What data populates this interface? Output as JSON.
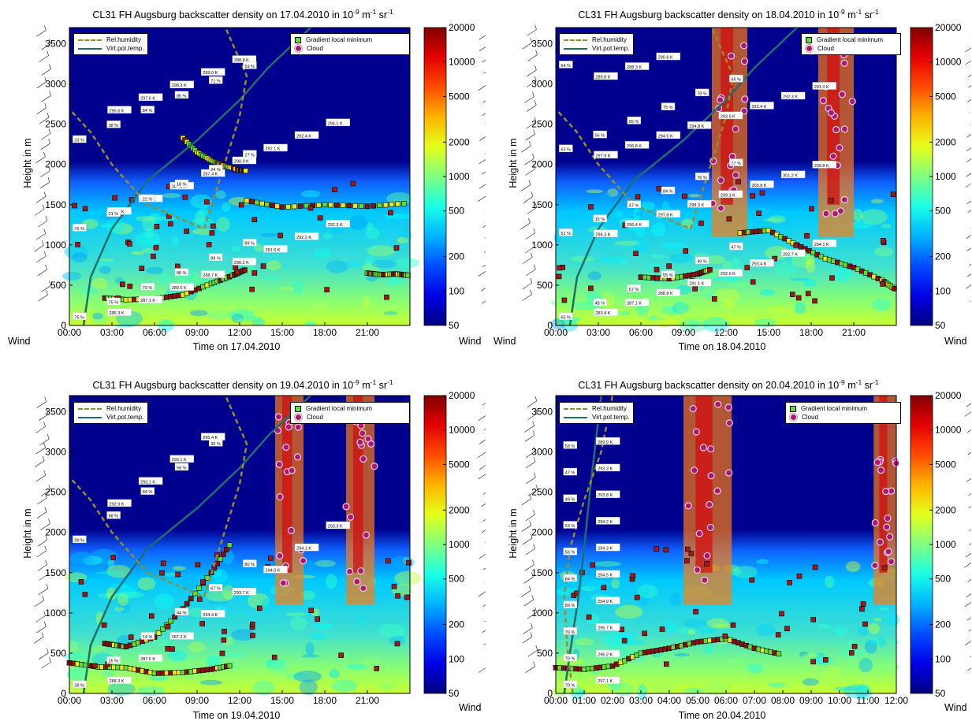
{
  "colorbar_ticks": [
    "20000",
    "10000",
    "5000",
    "2000",
    "1000",
    "500",
    "200",
    "100",
    "50"
  ],
  "colorbar_values": [
    20000,
    10000,
    5000,
    2000,
    1000,
    500,
    200,
    100,
    50
  ],
  "wind_label": "Wind",
  "legend": {
    "rh": "Rel.humidity",
    "vpt": "Virt.pot.temp.",
    "grad": "Gradient local minimum",
    "cloud": "Cloud"
  },
  "colors": {
    "rh_line": "#9a8a2a",
    "vpt_line": "#1f6e6e",
    "grad_marker": "#5fe030",
    "cloud_marker": "#b0186c",
    "background_low": "#00008f",
    "background_mid": "#00c8ff",
    "background_high": "#c8ff30"
  },
  "panels": [
    {
      "title_main": "CL31 FH Augsburg backscatter density on 17.04.2010 in 10",
      "title_exp": "-9",
      "title_unit1": " m",
      "title_exp2": "-1",
      "title_unit2": " sr",
      "title_exp3": "-1",
      "xlabel": "Time on 17.04.2010",
      "ylabel": "Height in m",
      "xticks": [
        "00:00",
        "03:00",
        "06:00",
        "09:00",
        "12:00",
        "15:00",
        "18:00",
        "21:00"
      ],
      "yticks": [
        "0",
        "500",
        "1000",
        "1500",
        "2000",
        "2500",
        "3000",
        "3500"
      ]
    },
    {
      "title_main": "CL31 FH Augsburg backscatter density on 18.04.2010 in 10",
      "title_exp": "-9",
      "title_unit1": " m",
      "title_exp2": "-1",
      "title_unit2": " sr",
      "title_exp3": "-1",
      "xlabel": "Time on 18.04.2010",
      "ylabel": "Height in m",
      "xticks": [
        "00:00",
        "03:00",
        "06:00",
        "09:00",
        "12:00",
        "15:00",
        "18:00",
        "21:00"
      ],
      "yticks": [
        "0",
        "500",
        "1000",
        "1500",
        "2000",
        "2500",
        "3000",
        "3500"
      ]
    },
    {
      "title_main": "CL31 FH Augsburg backscatter density on 19.04.2010 in 10",
      "title_exp": "-9",
      "title_unit1": " m",
      "title_exp2": "-1",
      "title_unit2": " sr",
      "title_exp3": "-1",
      "xlabel": "Time on 19.04.2010",
      "ylabel": "Height in m",
      "xticks": [
        "00:00",
        "03:00",
        "06:00",
        "09:00",
        "12:00",
        "15:00",
        "18:00",
        "21:00"
      ],
      "yticks": [
        "0",
        "500",
        "1000",
        "1500",
        "2000",
        "2500",
        "3000",
        "3500"
      ]
    },
    {
      "title_main": "CL31 FH Augsburg backscatter density on 20.04.2010 in 10",
      "title_exp": "-9",
      "title_unit1": " m",
      "title_exp2": "-1",
      "title_unit2": " sr",
      "title_exp3": "-1",
      "xlabel": "Time on 20.04.2010",
      "ylabel": "Height in m",
      "xticks": [
        "00:00",
        "01:00",
        "02:00",
        "03:00",
        "04:00",
        "05:00",
        "06:00",
        "07:00",
        "08:00",
        "09:00",
        "10:00",
        "11:00",
        "12:00"
      ],
      "yticks": [
        "0",
        "500",
        "1000",
        "1500",
        "2000",
        "2500",
        "3000",
        "3500"
      ]
    }
  ],
  "chart_data": [
    {
      "type": "heatmap",
      "date": "17.04.2010",
      "xlim_hours": [
        0,
        24
      ],
      "ylim_m": [
        0,
        3700
      ],
      "colorscale": "log",
      "clim": [
        50,
        20000
      ],
      "vpt_labels": [
        "286.3 K",
        "287.1 K",
        "289.0 K",
        "288.7 K",
        "290.2 K",
        "291.5 K",
        "292.2 K",
        "292.3 K",
        "295.1 K",
        "290.7 K",
        "287.0 K",
        "287.4 K",
        "290.0 K",
        "292.1 K",
        "292.4 K",
        "294.1 K",
        "295.6 K",
        "297.6 K",
        "298.3 K",
        "289.0 K",
        "288.8 K"
      ],
      "rh_labels": [
        "75 %",
        "75 %",
        "79 %",
        "88 %",
        "89 %",
        "89 %",
        "76 %",
        "21 %",
        "22 %",
        "18 %",
        "24 %",
        "27 %",
        "33 %",
        "38 %",
        "84 %",
        "85 %",
        "71 %",
        "59 %"
      ],
      "gradient_layers": [
        {
          "name": "nocturnal",
          "x": [
            2.5,
            4,
            6,
            8,
            10,
            11.5,
            12.5
          ],
          "y": [
            340,
            320,
            330,
            380,
            520,
            620,
            700
          ]
        },
        {
          "name": "residual",
          "x": [
            8,
            9,
            10,
            11,
            12,
            12.5
          ],
          "y": [
            2330,
            2150,
            2050,
            1980,
            1930,
            1920
          ]
        },
        {
          "name": "top",
          "x": [
            12.5,
            15,
            18,
            21,
            24
          ],
          "y": [
            1550,
            1470,
            1500,
            1480,
            1520
          ]
        },
        {
          "name": "late",
          "x": [
            21,
            22,
            23,
            24
          ],
          "y": [
            650,
            630,
            640,
            620
          ]
        }
      ]
    },
    {
      "type": "heatmap",
      "date": "18.04.2010",
      "xlim_hours": [
        0,
        24
      ],
      "ylim_m": [
        0,
        3700
      ],
      "colorscale": "log",
      "clim": [
        50,
        20000
      ],
      "vpt_labels": [
        "283.4 K",
        "287.1 K",
        "288.8 K",
        "291.1 K",
        "292.6 K",
        "293.4 K",
        "292.7 K",
        "294.1 K",
        "296.3 K",
        "296.4 K",
        "297.8 K",
        "298.3 K",
        "299.1 K",
        "300.8 K",
        "301.2 K",
        "299.8 K",
        "297.9 K",
        "296.8 K",
        "294.5 K",
        "294.8 K",
        "293.9 K",
        "293.4 K",
        "292.3 K",
        "291.0 K",
        "289.8 K",
        "288.3 K",
        "290.8 K"
      ],
      "rh_labels": [
        "65 %",
        "48 %",
        "57 %",
        "55 %",
        "49 %",
        "47 %",
        "51 %",
        "15 %",
        "47 %",
        "84 %",
        "76 %",
        "77 %",
        "63 %",
        "56 %",
        "65 %",
        "75 %",
        "78 %",
        "66 %",
        "64 %"
      ],
      "gradient_layers": [
        {
          "name": "morning",
          "x": [
            6,
            8,
            10,
            11
          ],
          "y": [
            600,
            580,
            640,
            700
          ]
        },
        {
          "name": "afternoon",
          "x": [
            13,
            15,
            17,
            19,
            21,
            23,
            24
          ],
          "y": [
            1150,
            1180,
            1000,
            830,
            720,
            560,
            440
          ]
        }
      ],
      "clouds_hours": [
        [
          11,
          13.5
        ],
        [
          18.5,
          21
        ]
      ]
    },
    {
      "type": "heatmap",
      "date": "19.04.2010",
      "xlim_hours": [
        0,
        24
      ],
      "ylim_m": [
        0,
        3700
      ],
      "colorscale": "log",
      "clim": [
        50,
        20000
      ],
      "vpt_labels": [
        "288.3 K",
        "287.5 K",
        "287.2 K",
        "294.4 K",
        "293.7 K",
        "294.0 K",
        "294.1 K",
        "293.3 K",
        "292.9 K",
        "293.1 K",
        "293.1 K",
        "295.4 K"
      ],
      "rh_labels": [
        "28 %",
        "15 %",
        "14 %",
        "44 %",
        "67 %",
        "80 %",
        "99 %",
        "88 %",
        "84 %",
        "58 %",
        "39 %"
      ],
      "gradient_layers": [
        {
          "name": "nocturnal",
          "x": [
            0,
            2,
            4,
            6,
            8,
            10,
            11.5
          ],
          "y": [
            380,
            330,
            320,
            250,
            260,
            300,
            350
          ]
        },
        {
          "name": "rising",
          "x": [
            2.5,
            4,
            6,
            8,
            10,
            11.5
          ],
          "y": [
            620,
            580,
            700,
            1050,
            1500,
            1900
          ]
        }
      ],
      "clouds_hours": [
        [
          14.5,
          16.5
        ],
        [
          19.5,
          21.5
        ]
      ]
    },
    {
      "type": "heatmap",
      "date": "20.04.2010",
      "xlim_hours": [
        0,
        12
      ],
      "ylim_m": [
        0,
        3700
      ],
      "colorscale": "log",
      "clim": [
        50,
        20000
      ],
      "vpt_labels": [
        "297.1 K",
        "296.2 K",
        "295.7 K",
        "294.9 K",
        "294.5 K",
        "294.3 K",
        "294.2 K",
        "293.8 K",
        "293.3 K",
        "289.9 K"
      ],
      "rh_labels": [
        "70 %",
        "70 %",
        "70 %",
        "89 %",
        "84 %",
        "56 %",
        "53 %",
        "49 %",
        "47 %",
        "58 %"
      ],
      "gradient_layers": [
        {
          "name": "boundary",
          "x": [
            0,
            1,
            2,
            3,
            4,
            5,
            6,
            7,
            8
          ],
          "y": [
            320,
            300,
            340,
            500,
            560,
            640,
            680,
            560,
            480
          ]
        }
      ],
      "clouds_hours": [
        [
          4.5,
          6.2
        ],
        [
          11.2,
          12
        ]
      ]
    }
  ]
}
